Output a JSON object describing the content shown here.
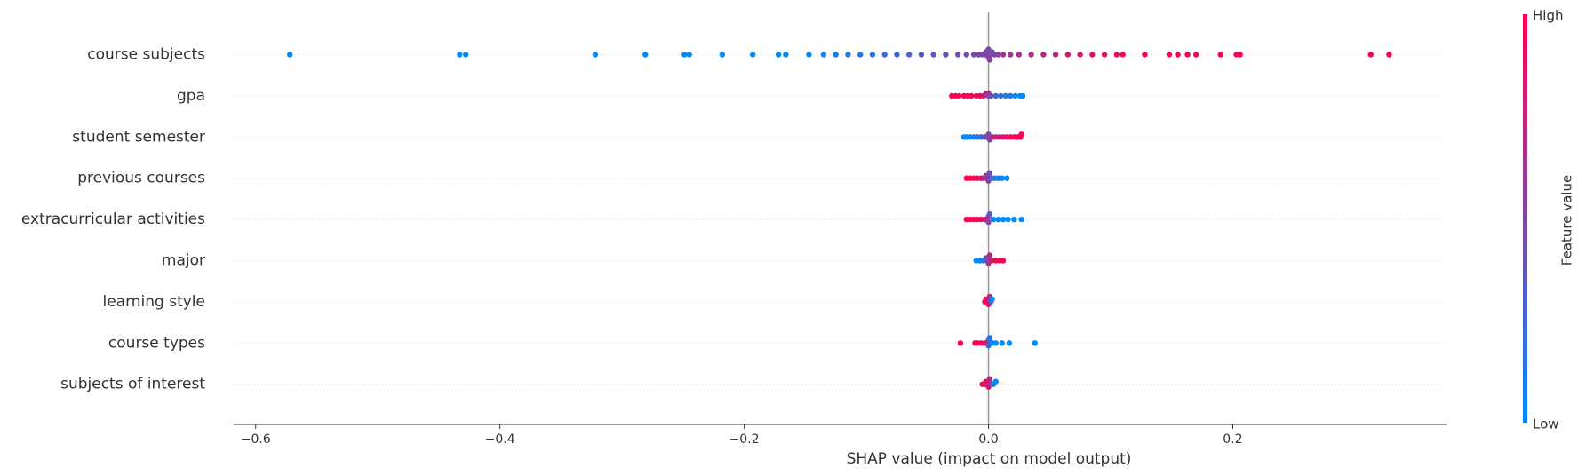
{
  "chart_data": {
    "type": "beeswarm",
    "xlabel": "SHAP value (impact on model output)",
    "colorbar_label": "Feature value",
    "colorbar_high": "High",
    "colorbar_low": "Low",
    "colormap": [
      "#008bfb",
      "#ff0051"
    ],
    "xlim": [
      -0.618,
      0.375
    ],
    "xticks": [
      {
        "value": -0.6,
        "label": "−0.6"
      },
      {
        "value": -0.4,
        "label": "−0.4"
      },
      {
        "value": -0.2,
        "label": "−0.2"
      },
      {
        "value": 0.0,
        "label": "0.0"
      },
      0.2
    ],
    "row_grid": true,
    "series": [
      {
        "name": "course subjects",
        "values": [
          -0.572,
          -0.433,
          -0.428,
          -0.322,
          -0.281,
          -0.249,
          -0.245,
          -0.218,
          -0.193,
          -0.172,
          -0.166,
          -0.147,
          -0.135,
          -0.125,
          -0.115,
          -0.105,
          -0.095,
          -0.085,
          -0.075,
          -0.065,
          -0.055,
          -0.045,
          -0.035,
          -0.025,
          -0.018,
          -0.012,
          -0.008,
          -0.005,
          -0.003,
          -0.002,
          -0.001,
          0,
          0,
          0,
          0.001,
          0.002,
          0.003,
          0.005,
          0.008,
          0.012,
          0.018,
          0.025,
          0.035,
          0.045,
          0.055,
          0.065,
          0.075,
          0.085,
          0.095,
          0.105,
          0.11,
          0.128,
          0.148,
          0.155,
          0.163,
          0.17,
          0.19,
          0.203,
          0.206,
          0.313,
          0.328
        ],
        "feature_values": [
          0,
          0,
          0,
          0,
          0,
          0,
          0,
          0,
          0,
          0,
          0,
          0,
          0.05,
          0.08,
          0.1,
          0.12,
          0.15,
          0.2,
          0.25,
          0.3,
          0.35,
          0.4,
          0.42,
          0.45,
          0.45,
          0.5,
          0.5,
          0.5,
          0.45,
          0.55,
          0.5,
          0.5,
          0.5,
          0.5,
          0.55,
          0.5,
          0.45,
          0.5,
          0.55,
          0.6,
          0.6,
          0.65,
          0.7,
          0.72,
          0.75,
          0.8,
          0.85,
          0.9,
          0.92,
          0.95,
          1,
          1,
          1,
          1,
          1,
          1,
          1,
          1,
          1,
          1,
          1
        ]
      },
      {
        "name": "gpa",
        "values": [
          -0.03,
          -0.027,
          -0.024,
          -0.02,
          -0.017,
          -0.014,
          -0.01,
          -0.007,
          -0.004,
          -0.002,
          0,
          0,
          0.002,
          0.006,
          0.01,
          0.014,
          0.018,
          0.022,
          0.026,
          0.028
        ],
        "feature_values": [
          1,
          1,
          0.95,
          1,
          0.95,
          1,
          0.9,
          0.95,
          0.85,
          0.7,
          0.5,
          0.6,
          0.4,
          0.3,
          0.2,
          0.15,
          0.1,
          0.05,
          0,
          0
        ]
      },
      {
        "name": "student semester",
        "values": [
          -0.02,
          -0.018,
          -0.015,
          -0.012,
          -0.009,
          -0.006,
          -0.003,
          -0.001,
          0,
          0.001,
          0.003,
          0.006,
          0.009,
          0.012,
          0.015,
          0.018,
          0.021,
          0.024,
          0.026,
          0.027
        ],
        "feature_values": [
          0,
          0,
          0.05,
          0.1,
          0.15,
          0.25,
          0.35,
          0.45,
          0.5,
          0.55,
          0.65,
          0.75,
          0.8,
          0.85,
          0.9,
          0.95,
          1,
          1,
          1,
          1
        ]
      },
      {
        "name": "previous courses",
        "values": [
          -0.018,
          -0.015,
          -0.012,
          -0.009,
          -0.006,
          -0.004,
          -0.002,
          -0.001,
          0,
          0,
          0.001,
          0.003,
          0.005,
          0.008,
          0.011,
          0.015
        ],
        "feature_values": [
          1,
          1,
          0.95,
          0.9,
          0.85,
          0.75,
          0.6,
          0.5,
          0.5,
          0.55,
          0.45,
          0.3,
          0.2,
          0.1,
          0.05,
          0
        ]
      },
      {
        "name": "extracurricular activities",
        "values": [
          -0.018,
          -0.015,
          -0.012,
          -0.009,
          -0.006,
          -0.003,
          -0.001,
          0,
          0,
          0.001,
          0.004,
          0.008,
          0.012,
          0.016,
          0.021,
          0.027
        ],
        "feature_values": [
          1,
          1,
          1,
          0.95,
          0.9,
          0.8,
          0.7,
          0.6,
          0.5,
          0.3,
          0.1,
          0,
          0,
          0,
          0,
          0
        ]
      },
      {
        "name": "major",
        "values": [
          -0.01,
          -0.007,
          -0.004,
          -0.002,
          -0.001,
          0,
          0,
          0.001,
          0.003,
          0.006,
          0.009,
          0.012
        ],
        "feature_values": [
          0,
          0,
          0.1,
          0.3,
          0.45,
          0.5,
          0.6,
          0.7,
          0.85,
          0.95,
          1,
          1
        ]
      },
      {
        "name": "learning style",
        "values": [
          -0.003,
          -0.002,
          -0.001,
          0,
          0,
          0.001,
          0.002,
          0.003
        ],
        "feature_values": [
          0.9,
          1,
          0.9,
          0.8,
          0.9,
          0.7,
          0.3,
          0
        ]
      },
      {
        "name": "course types",
        "values": [
          -0.023,
          -0.011,
          -0.009,
          -0.006,
          -0.003,
          -0.001,
          0,
          0,
          0.001,
          0.003,
          0.006,
          0.011,
          0.017,
          0.038
        ],
        "feature_values": [
          1,
          1,
          1,
          0.95,
          0.9,
          0.8,
          0.5,
          0.2,
          0.1,
          0,
          0,
          0,
          0,
          0
        ]
      },
      {
        "name": "subjects of interest",
        "values": [
          -0.005,
          -0.003,
          -0.002,
          -0.001,
          0,
          0,
          0.001,
          0.002,
          0.004,
          0.006
        ],
        "feature_values": [
          1,
          0.9,
          0.9,
          0.8,
          0.85,
          0.9,
          0.7,
          0.5,
          0.2,
          0
        ]
      }
    ]
  }
}
